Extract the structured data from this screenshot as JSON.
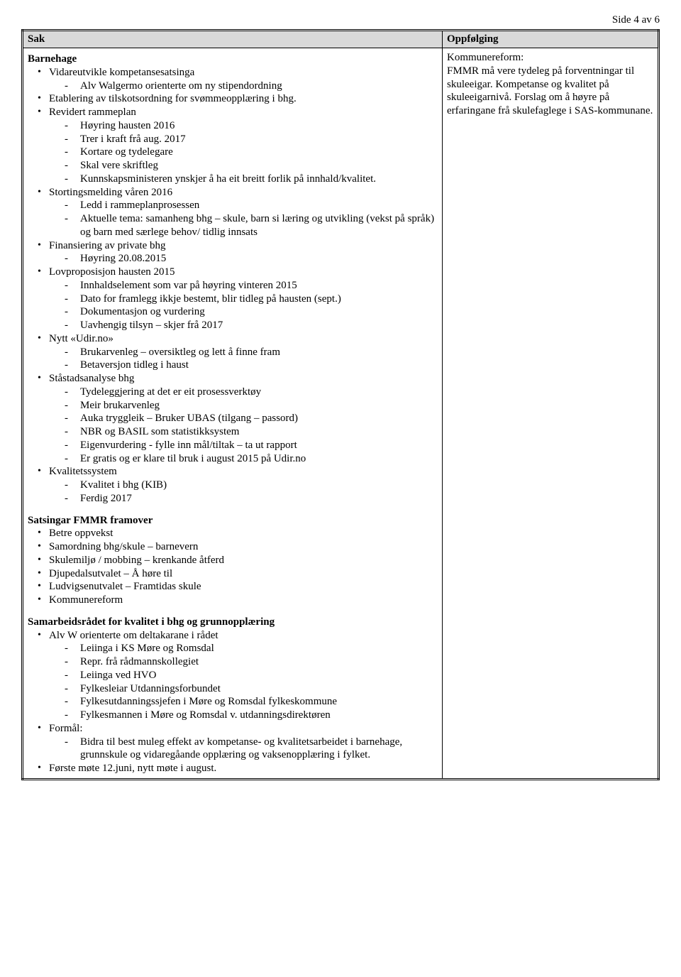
{
  "page_info": "Side 4 av 6",
  "header": {
    "col1": "Sak",
    "col2": "Oppfølging"
  },
  "sak": {
    "title1": "Barnehage",
    "b1": [
      {
        "t": "Vidareutvikle kompetansesatsinga",
        "sub": [
          "Alv Walgermo orienterte om ny stipendordning"
        ]
      },
      {
        "t": "Etablering av tilskotsordning for svømmeopplæring i bhg."
      },
      {
        "t": "Revidert rammeplan",
        "sub": [
          "Høyring hausten 2016",
          "Trer i kraft frå aug. 2017",
          "Kortare og tydelegare",
          "Skal vere skriftleg",
          "Kunnskapsministeren ynskjer å ha eit breitt forlik på innhald/kvalitet."
        ]
      },
      {
        "t": "Stortingsmelding våren 2016",
        "sub": [
          "Ledd i rammeplanprosessen",
          "Aktuelle tema: samanheng bhg – skule, barn si læring og utvikling (vekst på språk) og barn med særlege behov/ tidlig innsats"
        ]
      },
      {
        "t": "Finansiering av private bhg",
        "sub": [
          "Høyring 20.08.2015"
        ]
      },
      {
        "t": "Lovproposisjon hausten 2015",
        "sub": [
          "Innhaldselement som var på høyring vinteren 2015",
          "Dato for framlegg ikkje bestemt, blir tidleg på hausten (sept.)",
          "Dokumentasjon og vurdering",
          "Uavhengig tilsyn – skjer frå 2017"
        ]
      },
      {
        "t": "Nytt «Udir.no»",
        "sub": [
          "Brukarvenleg – oversiktleg og lett å finne fram",
          "Betaversjon tidleg i haust"
        ]
      },
      {
        "t": "Ståstadsanalyse bhg",
        "sub": [
          "Tydeleggjering at det er eit prosessverktøy",
          "Meir brukarvenleg",
          "Auka tryggleik – Bruker UBAS (tilgang – passord)",
          "NBR og BASIL som statistikksystem",
          "Eigenvurdering  -  fylle inn mål/tiltak – ta ut rapport",
          "Er gratis og er klare til bruk i august 2015 på Udir.no"
        ]
      },
      {
        "t": "Kvalitetssystem",
        "sub": [
          "Kvalitet i bhg (KIB)",
          "Ferdig 2017"
        ]
      }
    ],
    "title2": "Satsingar FMMR framover",
    "b2": [
      {
        "t": "Betre oppvekst"
      },
      {
        "t": "Samordning bhg/skule – barnevern"
      },
      {
        "t": "Skulemiljø / mobbing – krenkande åtferd"
      },
      {
        "t": "Djupedalsutvalet – Å høre til"
      },
      {
        "t": "Ludvigsenutvalet – Framtidas skule"
      },
      {
        "t": "Kommunereform"
      }
    ],
    "title3": "Samarbeidsrådet for kvalitet i bhg og grunnopplæring",
    "b3": [
      {
        "t": "Alv W orienterte om deltakarane i rådet",
        "sub": [
          "Leiinga i KS Møre og Romsdal",
          "Repr. frå rådmannskollegiet",
          "Leiinga ved HVO",
          "Fylkesleiar Utdanningsforbundet",
          "Fylkesutdanningssjefen i Møre og Romsdal fylkeskommune",
          "Fylkesmannen i Møre og Romsdal v. utdanningsdirektøren"
        ]
      },
      {
        "t": "Formål:",
        "sub": [
          "Bidra til best muleg effekt av kompetanse- og kvalitetsarbeidet i barnehage, grunnskule og vidaregåande opplæring og vaksenopplæring i fylket."
        ]
      },
      {
        "t": "Første møte 12.juni, nytt møte i august."
      }
    ]
  },
  "opp": {
    "text": "Kommunereform:\nFMMR må vere tydeleg på forventningar til skuleeigar. Kompetanse og kvalitet på skuleeigarnivå. Forslag om å høyre på erfaringane frå skulefaglege i SAS-kommunane."
  }
}
